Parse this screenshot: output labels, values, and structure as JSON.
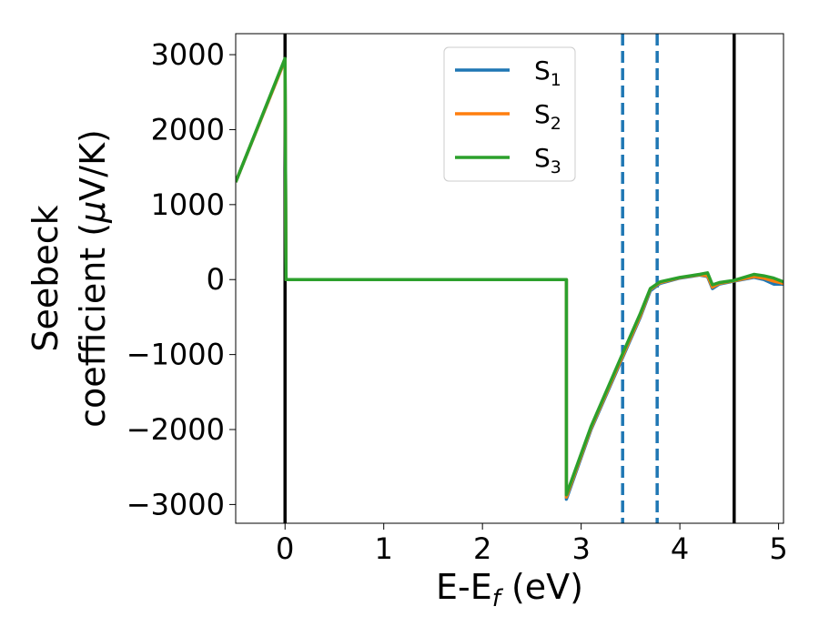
{
  "chart_data": {
    "type": "line",
    "title": "",
    "xlabel": "E-E",
    "xlabel_sub": "f",
    "xlabel_unit": "(eV)",
    "ylabel_line1": "Seebeck",
    "ylabel_line2_pre": "coefficient  (",
    "ylabel_mu": "μ",
    "ylabel_line2_post": "V/K)",
    "xlim": [
      -0.5,
      5.05
    ],
    "ylim": [
      -3250,
      3280
    ],
    "xticks": [
      0,
      1,
      2,
      3,
      4,
      5
    ],
    "yticks": [
      3000,
      2000,
      1000,
      0,
      -1000,
      -2000,
      -3000
    ],
    "xtick_labels": [
      "0",
      "1",
      "2",
      "3",
      "4",
      "5"
    ],
    "ytick_labels": [
      "3000",
      "2000",
      "1000",
      "0",
      "−1000",
      "−2000",
      "−3000"
    ],
    "grid": false,
    "legend_position": "upper-center",
    "vlines_solid": [
      0.0,
      4.55
    ],
    "vlines_dashed": [
      3.42,
      3.77
    ],
    "vline_solid_color": "#000000",
    "vline_dashed_color": "#1f77b4",
    "series": [
      {
        "name": "S",
        "subscript": "1",
        "color": "#1f77b4",
        "x": [
          -0.5,
          0.0,
          0.01,
          2.85,
          2.85,
          3.1,
          3.4,
          3.6,
          3.7,
          3.8,
          4.0,
          4.2,
          4.28,
          4.33,
          4.4,
          4.55,
          4.75,
          4.85,
          4.95,
          5.05
        ],
        "y": [
          1300,
          2930,
          0,
          0,
          -2930,
          -2000,
          -1100,
          -500,
          -150,
          -50,
          20,
          60,
          40,
          -120,
          -60,
          -20,
          30,
          0,
          -60,
          -60
        ]
      },
      {
        "name": "S",
        "subscript": "2",
        "color": "#ff7f0e",
        "x": [
          -0.5,
          0.0,
          0.01,
          2.85,
          2.85,
          3.1,
          3.4,
          3.6,
          3.7,
          3.8,
          4.0,
          4.2,
          4.28,
          4.33,
          4.4,
          4.55,
          4.75,
          4.85,
          4.95,
          5.05
        ],
        "y": [
          1300,
          2930,
          0,
          0,
          -2900,
          -1980,
          -1080,
          -480,
          -130,
          -40,
          25,
          65,
          50,
          -100,
          -50,
          -15,
          40,
          20,
          -20,
          -50
        ]
      },
      {
        "name": "S",
        "subscript": "3",
        "color": "#2ca02c",
        "x": [
          -0.5,
          0.0,
          0.01,
          2.85,
          2.85,
          3.1,
          3.4,
          3.6,
          3.7,
          3.8,
          4.0,
          4.2,
          4.28,
          4.33,
          4.4,
          4.55,
          4.75,
          4.85,
          4.95,
          5.05
        ],
        "y": [
          1300,
          2950,
          0,
          0,
          -2870,
          -1960,
          -1050,
          -450,
          -120,
          -30,
          30,
          70,
          90,
          -70,
          -40,
          -10,
          70,
          50,
          20,
          -30
        ]
      }
    ]
  }
}
